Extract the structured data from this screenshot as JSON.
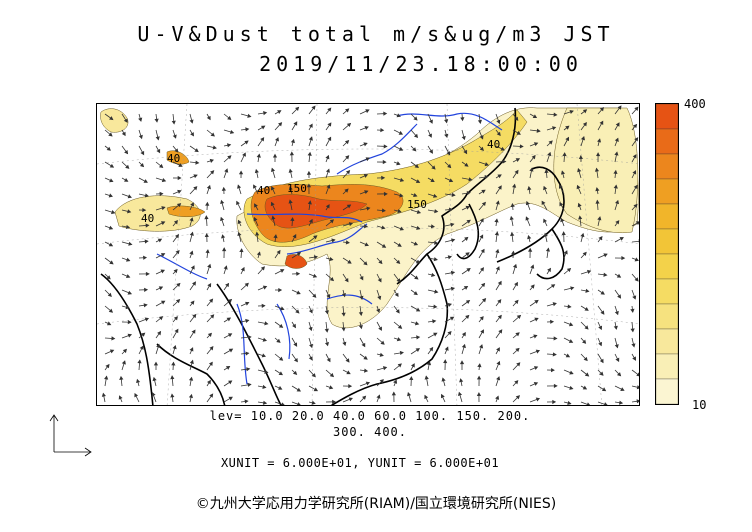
{
  "title": {
    "line1": "U-V&Dust total m/s&ug/m3 JST",
    "line2": "2019/11/23.18:00:00"
  },
  "colorbar": {
    "max_label": "400",
    "min_label": "10",
    "colors": [
      "#fbf5d2",
      "#f9efb6",
      "#f8e89c",
      "#f6e27f",
      "#f5dc63",
      "#f3d24a",
      "#f2c537",
      "#f1b52a",
      "#ef9f22",
      "#ec861d",
      "#e96b18",
      "#e65314"
    ]
  },
  "levels": {
    "line1": "lev= 10.0 20.0 40.0 60.0 100. 150. 200.",
    "line2": "300. 400."
  },
  "contour_labels": [
    "40",
    "40",
    "40",
    "150",
    "150",
    "40"
  ],
  "unit_text": "XUNIT = 6.000E+01, YUNIT = 6.000E+01",
  "copyright": "©九州大学応用力学研究所(RIAM)/国立環境研究所(NIES)",
  "colors": {
    "coast": "#000000",
    "river": "#2244dd",
    "arrow": "#333333"
  }
}
